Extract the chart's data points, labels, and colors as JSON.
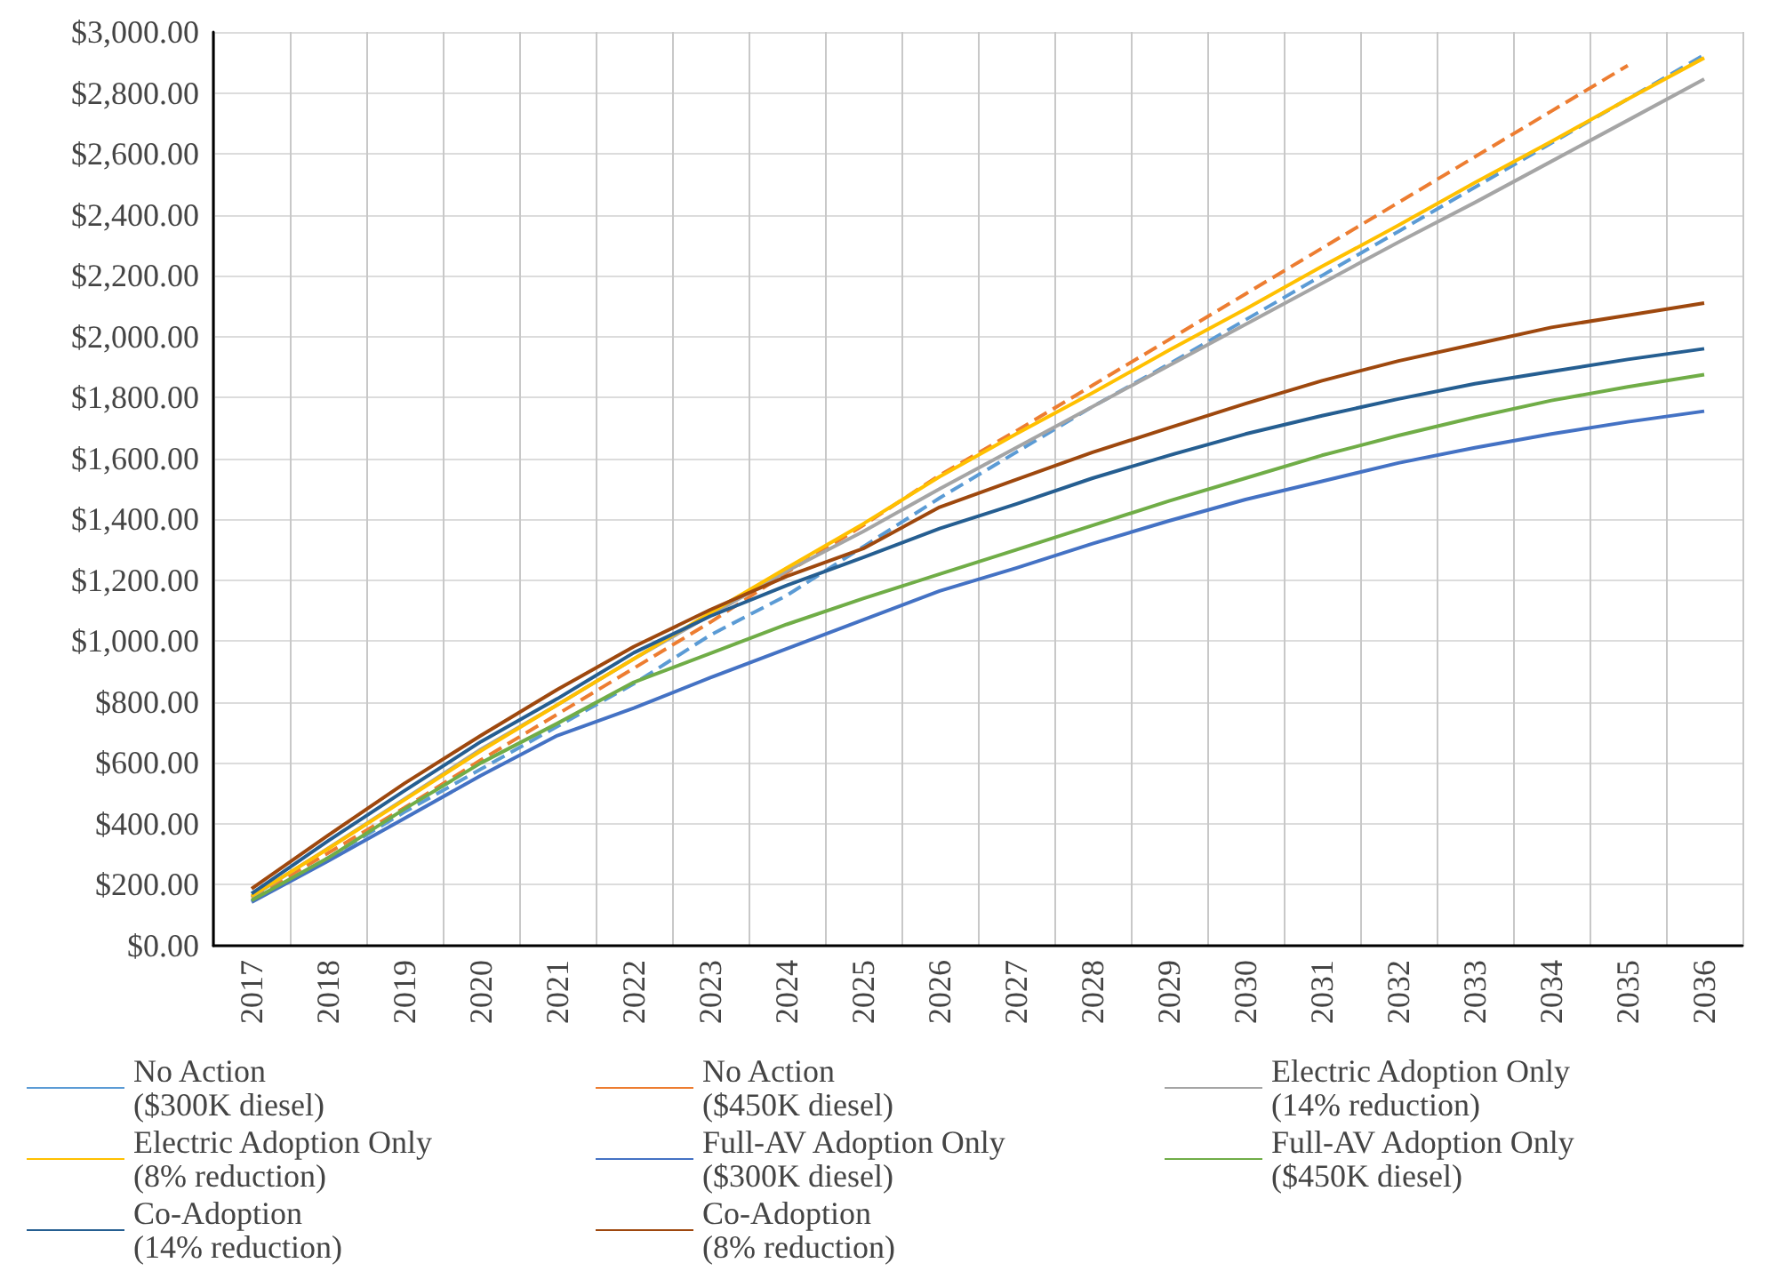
{
  "chart_data": {
    "type": "line",
    "categories": [
      "2017",
      "2018",
      "2019",
      "2020",
      "2021",
      "2022",
      "2023",
      "2024",
      "2025",
      "2026",
      "2027",
      "2028",
      "2029",
      "2030",
      "2031",
      "2032",
      "2033",
      "2034",
      "2035",
      "2036"
    ],
    "ylim": [
      0,
      3000
    ],
    "yticks": [
      {
        "value": 0,
        "label": "$0.00"
      },
      {
        "value": 200,
        "label": "$200.00"
      },
      {
        "value": 400,
        "label": "$400.00"
      },
      {
        "value": 600,
        "label": "$600.00"
      },
      {
        "value": 800,
        "label": "$800.00"
      },
      {
        "value": 1000,
        "label": "$1,000.00"
      },
      {
        "value": 1200,
        "label": "$1,200.00"
      },
      {
        "value": 1400,
        "label": "$1,400.00"
      },
      {
        "value": 1600,
        "label": "$1,600.00"
      },
      {
        "value": 1800,
        "label": "$1,800.00"
      },
      {
        "value": 2000,
        "label": "$2,000.00"
      },
      {
        "value": 2200,
        "label": "$2,200.00"
      },
      {
        "value": 2400,
        "label": "$2,400.00"
      },
      {
        "value": 2600,
        "label": "$2,600.00"
      },
      {
        "value": 2800,
        "label": "$2,800.00"
      },
      {
        "value": 3000,
        "label": "$3,000.00"
      }
    ],
    "grid": true,
    "legend": "bottom",
    "marker": "none",
    "series": [
      {
        "name": "No Action\n($300K diesel)",
        "color": "#5b9bd5",
        "line_style": "dashed",
        "values": [
          147,
          288,
          439,
          580,
          720,
          860,
          1020,
          1150,
          1310,
          1470,
          1620,
          1770,
          1910,
          2055,
          2200,
          2345,
          2490,
          2635,
          2780,
          2925
        ]
      },
      {
        "name": "No Action\n($450K diesel)",
        "color": "#ed7d31",
        "line_style": "dashed",
        "values": [
          157,
          304,
          453,
          610,
          760,
          911,
          1062,
          1225,
          1380,
          1545,
          1690,
          1840,
          1990,
          2140,
          2290,
          2440,
          2590,
          2740,
          2890,
          null
        ]
      },
      {
        "name": "Electric Adoption Only\n(14% reduction)",
        "color": "#a5a5a5",
        "line_style": "solid",
        "values": [
          160,
          320,
          482,
          645,
          791,
          942,
          1085,
          1230,
          1360,
          1500,
          1635,
          1770,
          1905,
          2040,
          2175,
          2310,
          2440,
          2575,
          2710,
          2845
        ]
      },
      {
        "name": "Electric Adoption Only\n(8% reduction)",
        "color": "#ffc000",
        "line_style": "solid",
        "values": [
          163,
          318,
          479,
          640,
          791,
          942,
          1093,
          1240,
          1385,
          1540,
          1680,
          1815,
          1955,
          2090,
          2230,
          2365,
          2505,
          2640,
          2780,
          2915
        ]
      },
      {
        "name": "Full-AV Adoption Only\n($300K diesel)",
        "color": "#4472c4",
        "line_style": "solid",
        "values": [
          143,
          278,
          418,
          559,
          690,
          780,
          880,
          975,
          1070,
          1165,
          1240,
          1320,
          1395,
          1465,
          1525,
          1585,
          1635,
          1680,
          1720,
          1755
        ]
      },
      {
        "name": "Full-AV Adoption Only\n($450K diesel)",
        "color": "#70ad47",
        "line_style": "solid",
        "values": [
          149,
          288,
          449,
          600,
          730,
          865,
          960,
          1055,
          1140,
          1220,
          1300,
          1380,
          1460,
          1535,
          1610,
          1675,
          1735,
          1790,
          1835,
          1875
        ]
      },
      {
        "name": "Co-Adoption\n(14% reduction)",
        "color": "#255e91",
        "line_style": "solid",
        "values": [
          171,
          344,
          509,
          670,
          811,
          962,
          1082,
          1183,
          1275,
          1370,
          1450,
          1535,
          1610,
          1680,
          1740,
          1795,
          1845,
          1885,
          1925,
          1960
        ]
      },
      {
        "name": "Co-Adoption\n(8% reduction)",
        "color": "#9e480e",
        "line_style": "solid",
        "values": [
          187,
          362,
          533,
          690,
          841,
          982,
          1103,
          1213,
          1304,
          1440,
          1530,
          1620,
          1700,
          1780,
          1855,
          1920,
          1975,
          2030,
          2070,
          2110
        ]
      }
    ]
  }
}
